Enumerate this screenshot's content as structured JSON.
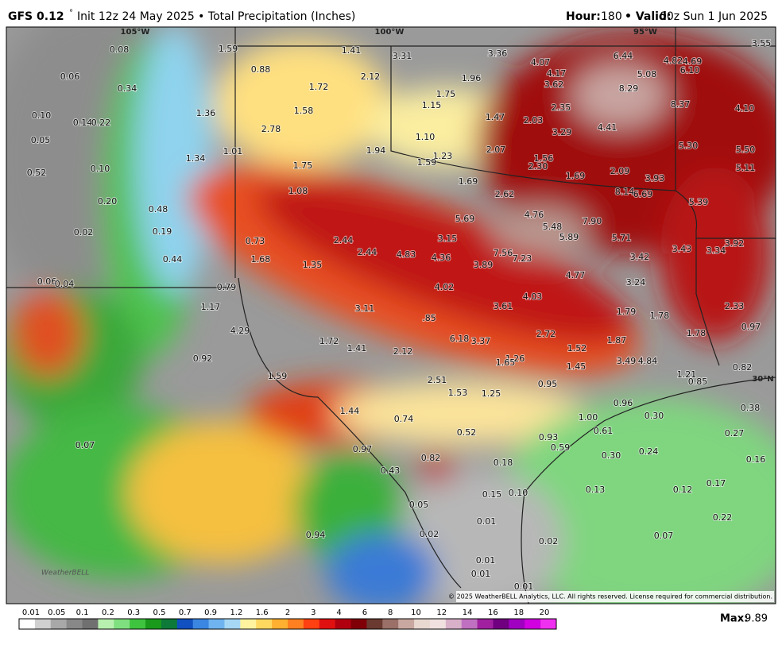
{
  "header": {
    "model": "GFS 0.12",
    "degree": "°",
    "description": "Init 12z 24 May 2025 • Total Precipitation (Inches)",
    "hour_label": "Hour:",
    "hour": "180",
    "valid_label": "• Valid:",
    "valid": "00z Sun 1 Jun 2025"
  },
  "map": {
    "grid_labels": [
      "105°W",
      "100°W",
      "95°W",
      "30°N"
    ],
    "values": [
      "0.08",
      "1.59",
      "1.41",
      "3.31",
      "3.36",
      "4.07",
      "6.44",
      "4.82",
      "4.69",
      "3.55",
      "0.06",
      "0.88",
      "2.12",
      "1.72",
      "1.96",
      "4.17",
      "5.08",
      "6.10",
      "0.34",
      "1.75",
      "3.62",
      "8.29",
      "1.36",
      "1.58",
      "1.15",
      "2.35",
      "8.37",
      "4.10",
      "0.10",
      "0.14",
      "0.22",
      "1.47",
      "2.03",
      "3.29",
      "4.41",
      "0.05",
      "2.78",
      "1.10",
      "1.01",
      "1.94",
      "2.07",
      "5.30",
      "5.50",
      "1.34",
      "1.23",
      "1.59",
      "1.56",
      "2.30",
      "0.52",
      "0.10",
      "1.75",
      "1.69",
      "2.09",
      "3.93",
      "5.11",
      "1.08",
      "1.69",
      "2.62",
      "8.14",
      "6.69",
      "0.20",
      "0.48",
      "5.39",
      "4.76",
      "5.69",
      "7.90",
      "5.48",
      "0.02",
      "0.19",
      "5.89",
      "5.71",
      "0.73",
      "2.44",
      "3.15",
      "3.92",
      "3.43",
      "3.34",
      "0.44",
      "1.68",
      "2.44",
      "4.83",
      "4.36",
      "7.56",
      "7.23",
      "3.89",
      "3.42",
      "1.35",
      "0.06",
      "0.04",
      "0.79",
      "4.02",
      "4.77",
      "3.24",
      "4.03",
      "3.61",
      "1.17",
      "3.11",
      "2.33",
      "1.79",
      "1.78",
      ".85",
      "0.97",
      "4.29",
      "2.72",
      "1.78",
      "6.18",
      "3.37",
      "1.72",
      "1.41",
      "1.87",
      "1.52",
      "2.12",
      "0.92",
      "1.26",
      "1.65",
      "3.49",
      "4.84",
      "1.45",
      "0.82",
      "1.59",
      "1.21",
      "0.85",
      "2.51",
      "0.95",
      "1.53",
      "1.25",
      "0.96",
      "0.38",
      "1.44",
      "0.30",
      "0.74",
      "1.00",
      "0.52",
      "0.61",
      "0.27",
      "0.93",
      "0.07",
      "0.97",
      "0.59",
      "0.30",
      "0.24",
      "0.82",
      "0.18",
      "0.16",
      "0.43",
      "0.17",
      "0.15",
      "0.10",
      "0.13",
      "0.12",
      "0.05",
      "0.01",
      "0.22",
      "0.94",
      "0.02",
      "0.07",
      "0.02",
      "0.01",
      "0.01",
      "0.01"
    ],
    "logo": "WeatherBELL",
    "copyright": "© 2025 WeatherBELL Analytics, LLC. All rights reserved. License required for commercial distribution."
  },
  "legend": {
    "ticks": [
      "0.01",
      "0.05",
      "0.1",
      "0.2",
      "0.3",
      "0.5",
      "0.7",
      "0.9",
      "1.2",
      "1.6",
      "2",
      "3",
      "4",
      "6",
      "8",
      "10",
      "12",
      "14",
      "16",
      "18",
      "20"
    ],
    "max_label": "Max:",
    "max": "9.89"
  }
}
